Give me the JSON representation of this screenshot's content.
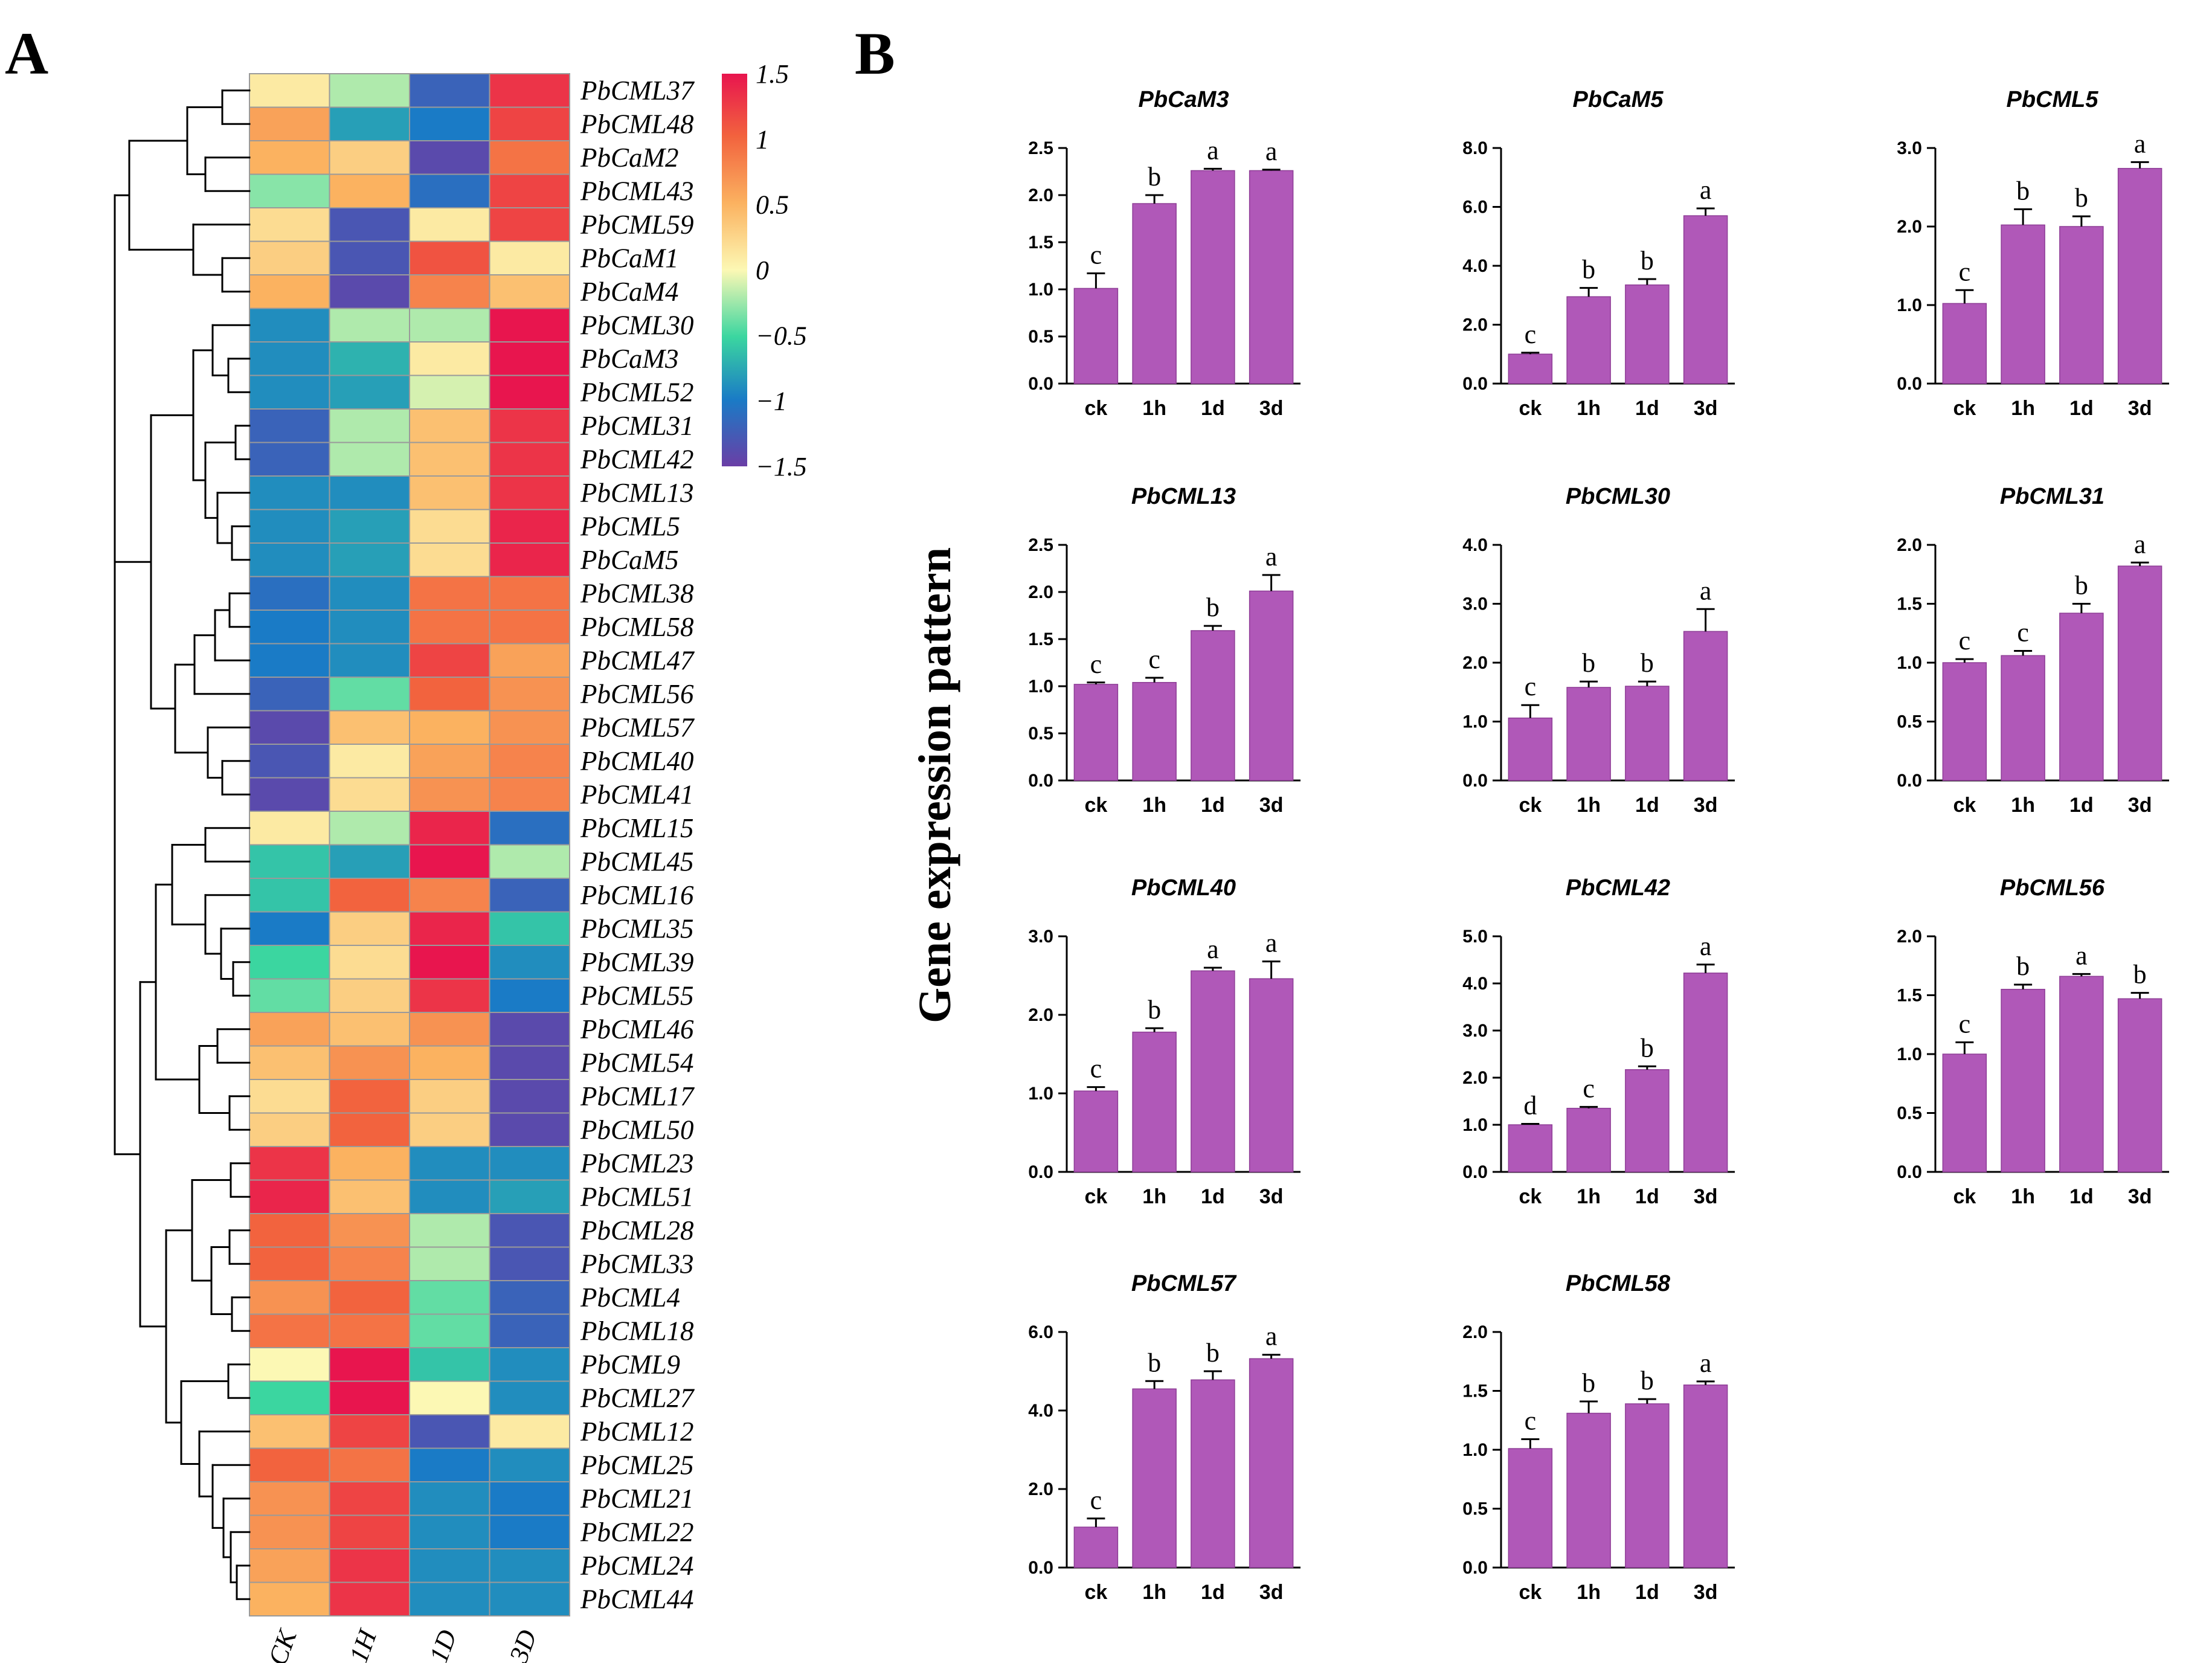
{
  "panel_labels": {
    "a": "A",
    "b": "B"
  },
  "y_axis_title": "Gene expression pattern",
  "colors": {
    "bar": "#b058b8",
    "bar_edge": "#8e3d96",
    "cell_border": "#9a9a9a"
  },
  "chart_data": [
    {
      "type": "heatmap",
      "title": "",
      "columns": [
        "CK",
        "1H",
        "1D",
        "3D"
      ],
      "rows": [
        "PbCML37",
        "PbCML48",
        "PbCaM2",
        "PbCML43",
        "PbCML59",
        "PbCaM1",
        "PbCaM4",
        "PbCML30",
        "PbCaM3",
        "PbCML52",
        "PbCML31",
        "PbCML42",
        "PbCML13",
        "PbCML5",
        "PbCaM5",
        "PbCML38",
        "PbCML58",
        "PbCML47",
        "PbCML56",
        "PbCML57",
        "PbCML40",
        "PbCML41",
        "PbCML15",
        "PbCML45",
        "PbCML16",
        "PbCML35",
        "PbCML39",
        "PbCML55",
        "PbCML46",
        "PbCML54",
        "PbCML17",
        "PbCML50",
        "PbCML23",
        "PbCML51",
        "PbCML28",
        "PbCML33",
        "PbCML4",
        "PbCML18",
        "PbCML9",
        "PbCML27",
        "PbCML12",
        "PbCML25",
        "PbCML21",
        "PbCML22",
        "PbCML24",
        "PbCML44"
      ],
      "values": [
        [
          0.1,
          -0.2,
          -1.2,
          1.3
        ],
        [
          0.6,
          -0.8,
          -1.0,
          1.2
        ],
        [
          0.5,
          0.3,
          -1.4,
          0.9
        ],
        [
          -0.3,
          0.5,
          -1.1,
          1.2
        ],
        [
          0.2,
          -1.3,
          0.1,
          1.2
        ],
        [
          0.3,
          -1.3,
          1.1,
          0.1
        ],
        [
          0.5,
          -1.4,
          0.8,
          0.4
        ],
        [
          -0.9,
          -0.2,
          -0.2,
          1.5
        ],
        [
          -0.9,
          -0.7,
          0.1,
          1.5
        ],
        [
          -0.9,
          -0.8,
          -0.1,
          1.5
        ],
        [
          -1.2,
          -0.2,
          0.4,
          1.3
        ],
        [
          -1.2,
          -0.2,
          0.4,
          1.3
        ],
        [
          -0.9,
          -0.9,
          0.4,
          1.3
        ],
        [
          -0.9,
          -0.8,
          0.2,
          1.4
        ],
        [
          -0.9,
          -0.8,
          0.2,
          1.4
        ],
        [
          -1.1,
          -0.9,
          0.9,
          0.9
        ],
        [
          -1.0,
          -0.9,
          0.9,
          0.9
        ],
        [
          -1.0,
          -0.9,
          1.2,
          0.6
        ],
        [
          -1.2,
          -0.4,
          1.0,
          0.7
        ],
        [
          -1.4,
          0.4,
          0.5,
          0.7
        ],
        [
          -1.3,
          0.1,
          0.6,
          0.8
        ],
        [
          -1.4,
          0.2,
          0.7,
          0.8
        ],
        [
          0.1,
          -0.2,
          1.4,
          -1.1
        ],
        [
          -0.6,
          -0.8,
          1.5,
          -0.2
        ],
        [
          -0.6,
          1.0,
          0.8,
          -1.2
        ],
        [
          -1.0,
          0.3,
          1.4,
          -0.6
        ],
        [
          -0.5,
          0.2,
          1.5,
          -0.9
        ],
        [
          -0.4,
          0.3,
          1.3,
          -1.0
        ],
        [
          0.6,
          0.4,
          0.7,
          -1.4
        ],
        [
          0.4,
          0.7,
          0.5,
          -1.4
        ],
        [
          0.2,
          1.0,
          0.3,
          -1.4
        ],
        [
          0.3,
          1.0,
          0.3,
          -1.4
        ],
        [
          1.3,
          0.5,
          -0.9,
          -0.9
        ],
        [
          1.4,
          0.4,
          -0.9,
          -0.8
        ],
        [
          1.0,
          0.7,
          -0.2,
          -1.3
        ],
        [
          1.0,
          0.8,
          -0.2,
          -1.3
        ],
        [
          0.7,
          1.0,
          -0.4,
          -1.2
        ],
        [
          0.9,
          0.9,
          -0.4,
          -1.2
        ],
        [
          0.0,
          1.5,
          -0.6,
          -0.9
        ],
        [
          -0.5,
          1.5,
          0.0,
          -0.9
        ],
        [
          0.4,
          1.2,
          -1.3,
          0.1
        ],
        [
          1.0,
          0.9,
          -1.0,
          -0.9
        ],
        [
          0.7,
          1.2,
          -0.9,
          -1.0
        ],
        [
          0.7,
          1.2,
          -0.9,
          -1.0
        ],
        [
          0.6,
          1.3,
          -0.9,
          -0.9
        ],
        [
          0.5,
          1.3,
          -0.9,
          -0.9
        ]
      ],
      "color_scale": {
        "range": [
          -1.5,
          1.5
        ],
        "ticks": [
          1.5,
          1,
          0.5,
          0,
          -0.5,
          -1,
          -1.5
        ],
        "tick_labels": [
          "1.5",
          "1",
          "0.5",
          "0",
          "−0.5",
          "−1",
          "−1.5"
        ]
      }
    },
    {
      "type": "bar",
      "title": "PbCaM3",
      "categories": [
        "ck",
        "1h",
        "1d",
        "3d"
      ],
      "values": [
        1.01,
        1.91,
        2.26,
        2.26
      ],
      "errors": [
        0.16,
        0.09,
        0.02,
        0.01
      ],
      "significance": [
        "c",
        "b",
        "a",
        "a"
      ],
      "ylim": [
        0,
        2.5
      ],
      "yticks": [
        "0.0",
        "0.5",
        "1.0",
        "1.5",
        "2.0",
        "2.5"
      ]
    },
    {
      "type": "bar",
      "title": "PbCaM5",
      "categories": [
        "ck",
        "1h",
        "1d",
        "3d"
      ],
      "values": [
        1.0,
        2.95,
        3.35,
        5.7
      ],
      "errors": [
        0.05,
        0.3,
        0.2,
        0.25
      ],
      "significance": [
        "c",
        "b",
        "b",
        "a"
      ],
      "ylim": [
        0,
        8
      ],
      "yticks": [
        "0.0",
        "2.0",
        "4.0",
        "6.0",
        "8.0"
      ]
    },
    {
      "type": "bar",
      "title": "PbCML5",
      "categories": [
        "ck",
        "1h",
        "1d",
        "3d"
      ],
      "values": [
        1.02,
        2.02,
        2.0,
        2.74
      ],
      "errors": [
        0.17,
        0.2,
        0.13,
        0.08
      ],
      "significance": [
        "c",
        "b",
        "b",
        "a"
      ],
      "ylim": [
        0,
        3
      ],
      "yticks": [
        "0.0",
        "1.0",
        "2.0",
        "3.0"
      ]
    },
    {
      "type": "bar",
      "title": "PbCML13",
      "categories": [
        "ck",
        "1h",
        "1d",
        "3d"
      ],
      "values": [
        1.02,
        1.04,
        1.59,
        2.01
      ],
      "errors": [
        0.02,
        0.05,
        0.05,
        0.17
      ],
      "significance": [
        "c",
        "c",
        "b",
        "a"
      ],
      "ylim": [
        0,
        2.5
      ],
      "yticks": [
        "0.0",
        "0.5",
        "1.0",
        "1.5",
        "2.0",
        "2.5"
      ]
    },
    {
      "type": "bar",
      "title": "PbCML30",
      "categories": [
        "ck",
        "1h",
        "1d",
        "3d"
      ],
      "values": [
        1.06,
        1.58,
        1.6,
        2.53
      ],
      "errors": [
        0.22,
        0.1,
        0.08,
        0.38
      ],
      "significance": [
        "c",
        "b",
        "b",
        "a"
      ],
      "ylim": [
        0,
        4
      ],
      "yticks": [
        "0.0",
        "1.0",
        "2.0",
        "3.0",
        "4.0"
      ]
    },
    {
      "type": "bar",
      "title": "PbCML31",
      "categories": [
        "ck",
        "1h",
        "1d",
        "3d"
      ],
      "values": [
        1.0,
        1.06,
        1.42,
        1.82
      ],
      "errors": [
        0.03,
        0.04,
        0.08,
        0.03
      ],
      "significance": [
        "c",
        "c",
        "b",
        "a"
      ],
      "ylim": [
        0,
        2
      ],
      "yticks": [
        "0.0",
        "0.5",
        "1.0",
        "1.5",
        "2.0"
      ]
    },
    {
      "type": "bar",
      "title": "PbCML40",
      "categories": [
        "ck",
        "1h",
        "1d",
        "3d"
      ],
      "values": [
        1.03,
        1.78,
        2.56,
        2.46
      ],
      "errors": [
        0.05,
        0.05,
        0.04,
        0.22
      ],
      "significance": [
        "c",
        "b",
        "a",
        "a"
      ],
      "ylim": [
        0,
        3
      ],
      "yticks": [
        "0.0",
        "1.0",
        "2.0",
        "3.0"
      ]
    },
    {
      "type": "bar",
      "title": "PbCML42",
      "categories": [
        "ck",
        "1h",
        "1d",
        "3d"
      ],
      "values": [
        1.0,
        1.35,
        2.17,
        4.22
      ],
      "errors": [
        0.02,
        0.03,
        0.07,
        0.18
      ],
      "significance": [
        "d",
        "c",
        "b",
        "a"
      ],
      "ylim": [
        0,
        5
      ],
      "yticks": [
        "0.0",
        "1.0",
        "2.0",
        "3.0",
        "4.0",
        "5.0"
      ]
    },
    {
      "type": "bar",
      "title": "PbCML56",
      "categories": [
        "ck",
        "1h",
        "1d",
        "3d"
      ],
      "values": [
        1.0,
        1.55,
        1.66,
        1.47
      ],
      "errors": [
        0.1,
        0.04,
        0.02,
        0.05
      ],
      "significance": [
        "c",
        "b",
        "a",
        "b"
      ],
      "ylim": [
        0,
        2
      ],
      "yticks": [
        "0.0",
        "0.5",
        "1.0",
        "1.5",
        "2.0"
      ]
    },
    {
      "type": "bar",
      "title": "PbCML57",
      "categories": [
        "ck",
        "1h",
        "1d",
        "3d"
      ],
      "values": [
        1.03,
        4.55,
        4.78,
        5.32
      ],
      "errors": [
        0.22,
        0.2,
        0.22,
        0.1
      ],
      "significance": [
        "c",
        "b",
        "b",
        "a"
      ],
      "ylim": [
        0,
        6
      ],
      "yticks": [
        "0.0",
        "2.0",
        "4.0",
        "6.0"
      ]
    },
    {
      "type": "bar",
      "title": "PbCML58",
      "categories": [
        "ck",
        "1h",
        "1d",
        "3d"
      ],
      "values": [
        1.01,
        1.31,
        1.39,
        1.55
      ],
      "errors": [
        0.08,
        0.1,
        0.04,
        0.03
      ],
      "significance": [
        "c",
        "b",
        "b",
        "a"
      ],
      "ylim": [
        0,
        2
      ],
      "yticks": [
        "0.0",
        "0.5",
        "1.0",
        "1.5",
        "2.0"
      ]
    }
  ]
}
